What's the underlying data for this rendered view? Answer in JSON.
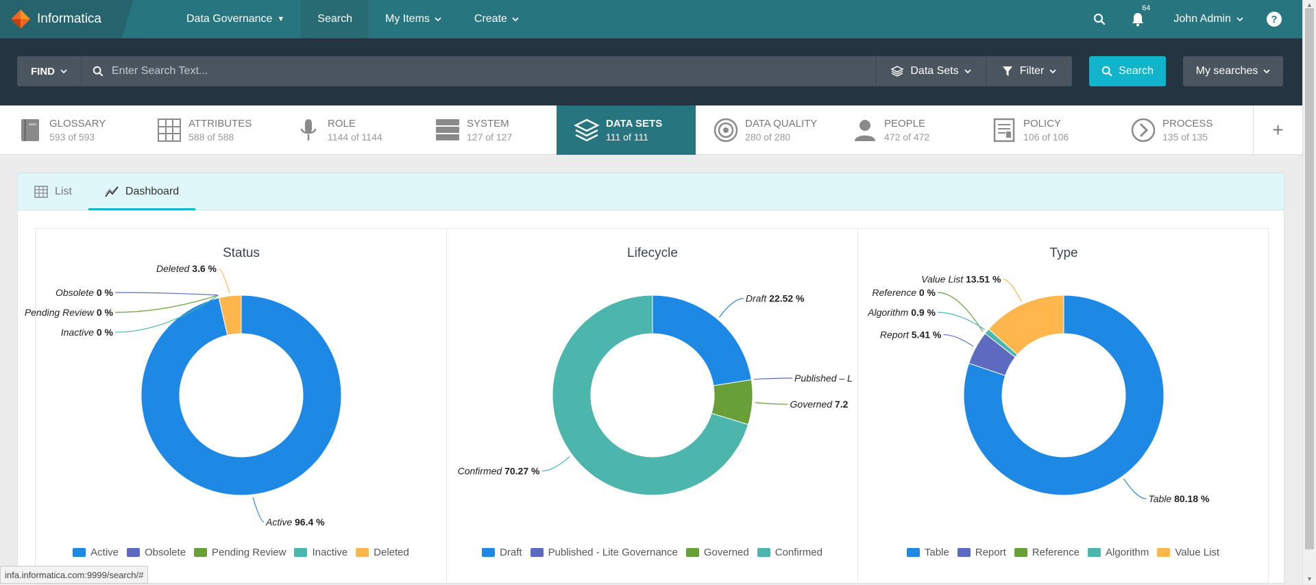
{
  "app": {
    "name": "Informatica",
    "notif_count": "64",
    "user": "John Admin",
    "help": "?"
  },
  "nav": {
    "governance": "Data Governance",
    "search": "Search",
    "my_items": "My Items",
    "create": "Create"
  },
  "search": {
    "find_label": "FIND",
    "placeholder": "Enter Search Text...",
    "asset_type": "Data Sets",
    "filter_label": "Filter",
    "button_label": "Search",
    "my_searches": "My searches"
  },
  "assets": [
    {
      "name": "GLOSSARY",
      "count": "593 of 593",
      "icon": "book-icon"
    },
    {
      "name": "ATTRIBUTES",
      "count": "588 of 588",
      "icon": "grid-icon"
    },
    {
      "name": "ROLE",
      "count": "1144 of 1144",
      "icon": "microphone-icon"
    },
    {
      "name": "SYSTEM",
      "count": "127 of 127",
      "icon": "server-icon"
    },
    {
      "name": "DATA SETS",
      "count": "111 of 111",
      "icon": "layers-icon"
    },
    {
      "name": "DATA QUALITY",
      "count": "280 of 280",
      "icon": "target-icon"
    },
    {
      "name": "PEOPLE",
      "count": "472 of 472",
      "icon": "person-icon"
    },
    {
      "name": "POLICY",
      "count": "106 of 106",
      "icon": "document-icon"
    },
    {
      "name": "PROCESS",
      "count": "135 of 135",
      "icon": "arrow-circle-icon"
    }
  ],
  "view_tabs": {
    "list": "List",
    "dashboard": "Dashboard"
  },
  "colors": {
    "blue": "#1e88e5",
    "purple": "#5c6bc0",
    "green": "#689f38",
    "teal": "#4db6ac",
    "orange": "#ffb74d",
    "accent": "#10b5cc",
    "header": "#27757f"
  },
  "chart_data": [
    {
      "type": "pie",
      "donut": true,
      "title": "Status",
      "series": [
        {
          "name": "Active",
          "value": 96.4,
          "label": "Active",
          "pct": "96.4 %"
        },
        {
          "name": "Obsolete",
          "value": 0,
          "label": "Obsolete",
          "pct": "0 %"
        },
        {
          "name": "Pending Review",
          "value": 0,
          "label": "Pending Review",
          "pct": "0 %"
        },
        {
          "name": "Inactive",
          "value": 0,
          "label": "Inactive",
          "pct": "0 %"
        },
        {
          "name": "Deleted",
          "value": 3.6,
          "label": "Deleted",
          "pct": "3.6 %"
        }
      ],
      "legend": [
        "Active",
        "Obsolete",
        "Pending Review",
        "Inactive",
        "Deleted"
      ],
      "legend_position": "bottom"
    },
    {
      "type": "pie",
      "donut": true,
      "title": "Lifecycle",
      "series": [
        {
          "name": "Draft",
          "value": 22.52,
          "label": "Draft",
          "pct": "22.52 %"
        },
        {
          "name": "Published - Lite Governance",
          "value": 0,
          "label": "Published – L",
          "pct": ""
        },
        {
          "name": "Governed",
          "value": 7.21,
          "label": "Governed",
          "pct": "7.2"
        },
        {
          "name": "Confirmed",
          "value": 70.27,
          "label": "Confirmed",
          "pct": "70.27 %"
        }
      ],
      "legend": [
        "Draft",
        "Published - Lite Governance",
        "Governed",
        "Confirmed"
      ],
      "legend_position": "bottom"
    },
    {
      "type": "pie",
      "donut": true,
      "title": "Type",
      "series": [
        {
          "name": "Table",
          "value": 80.18,
          "label": "Table",
          "pct": "80.18 %"
        },
        {
          "name": "Report",
          "value": 5.41,
          "label": "Report",
          "pct": "5.41 %"
        },
        {
          "name": "Reference",
          "value": 0,
          "label": "Reference",
          "pct": "0 %"
        },
        {
          "name": "Algorithm",
          "value": 0.9,
          "label": "Algorithm",
          "pct": "0.9 %"
        },
        {
          "name": "Value List",
          "value": 13.51,
          "label": "Value List",
          "pct": "13.51 %"
        }
      ],
      "legend": [
        "Table",
        "Report",
        "Reference",
        "Algorithm",
        "Value List"
      ],
      "legend_position": "bottom"
    }
  ],
  "status_url": "infa.informatica.com:9999/search/#"
}
